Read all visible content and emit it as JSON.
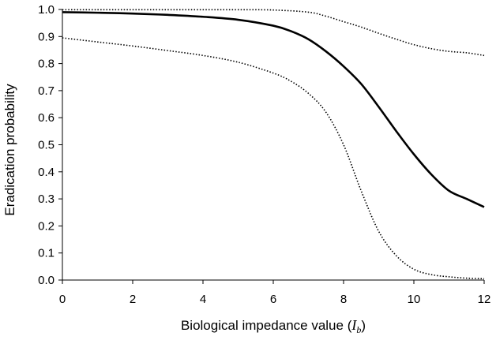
{
  "chart_data": {
    "type": "line",
    "title": "",
    "xlabel": "Biological impedance value (",
    "xlabel_var": "I",
    "xlabel_sub": "b",
    "xlabel_close": ")",
    "ylabel": "Eradication probability",
    "xlim": [
      0,
      12
    ],
    "ylim": [
      0.0,
      1.0
    ],
    "xticks": [
      "0",
      "2",
      "4",
      "6",
      "8",
      "10",
      "12"
    ],
    "xtick_values": [
      0,
      2,
      4,
      6,
      8,
      10,
      12
    ],
    "yticks": [
      "0.0",
      "0.1",
      "0.2",
      "0.3",
      "0.4",
      "0.5",
      "0.6",
      "0.7",
      "0.8",
      "0.9",
      "1.0"
    ],
    "ytick_values": [
      0.0,
      0.1,
      0.2,
      0.3,
      0.4,
      0.5,
      0.6,
      0.7,
      0.8,
      0.9,
      1.0
    ],
    "grid": false,
    "legend": "none",
    "series": [
      {
        "style": "solid",
        "x": [
          0,
          1,
          2,
          3,
          4,
          5,
          6,
          6.5,
          7,
          7.5,
          8,
          8.5,
          9,
          9.5,
          10,
          10.5,
          11,
          11.5,
          12
        ],
        "y": [
          0.99,
          0.988,
          0.985,
          0.98,
          0.973,
          0.962,
          0.94,
          0.92,
          0.89,
          0.845,
          0.79,
          0.725,
          0.64,
          0.55,
          0.465,
          0.39,
          0.33,
          0.3,
          0.27
        ]
      },
      {
        "style": "dotted",
        "x": [
          0,
          1,
          2,
          3,
          4,
          5,
          6,
          7,
          7.5,
          8,
          8.5,
          9,
          9.5,
          10,
          10.5,
          11,
          11.5,
          12
        ],
        "y": [
          0.999,
          0.999,
          0.999,
          0.999,
          0.999,
          0.999,
          0.998,
          0.99,
          0.975,
          0.955,
          0.935,
          0.912,
          0.89,
          0.87,
          0.855,
          0.845,
          0.84,
          0.83
        ]
      },
      {
        "style": "dotted",
        "x": [
          0,
          1,
          2,
          3,
          4,
          5,
          6,
          6.5,
          7,
          7.5,
          8,
          8.5,
          9,
          9.5,
          10,
          10.5,
          11,
          11.5,
          12
        ],
        "y": [
          0.895,
          0.88,
          0.865,
          0.848,
          0.83,
          0.805,
          0.765,
          0.735,
          0.69,
          0.62,
          0.5,
          0.33,
          0.18,
          0.09,
          0.04,
          0.02,
          0.012,
          0.007,
          0.005
        ]
      }
    ]
  }
}
